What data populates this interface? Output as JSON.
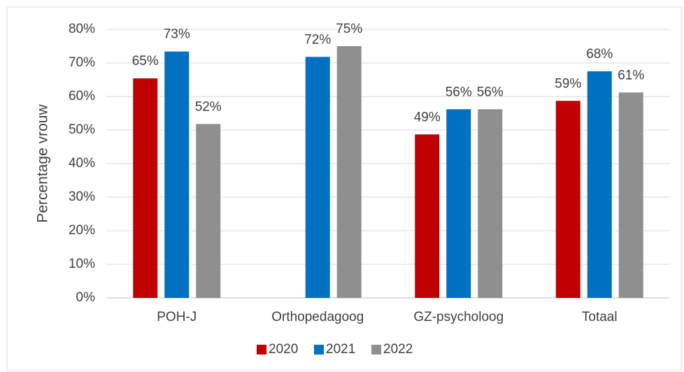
{
  "chart_data": {
    "type": "bar",
    "y_label": "Percentage vrouw",
    "categories": [
      "POH-J",
      "Orthopedagoog",
      "GZ-psycholoog",
      "Totaal"
    ],
    "series": [
      {
        "name": "2020",
        "color": "#c00000",
        "values": [
          65.4,
          null,
          48.7,
          58.7
        ],
        "value_labels": [
          "65%",
          null,
          "49%",
          "59%"
        ]
      },
      {
        "name": "2021",
        "color": "#0070c0",
        "values": [
          73.4,
          71.8,
          56.2,
          67.5
        ],
        "value_labels": [
          "73%",
          "72%",
          "56%",
          "68%"
        ]
      },
      {
        "name": "2022",
        "color": "#8f8f8f",
        "values": [
          51.8,
          75.0,
          56.2,
          61.2
        ],
        "value_labels": [
          "52%",
          "75%",
          "56%",
          "61%"
        ]
      }
    ],
    "ylim": [
      0,
      80
    ],
    "yticks": [
      {
        "value": 0,
        "label": "0%"
      },
      {
        "value": 10,
        "label": "10%"
      },
      {
        "value": 20,
        "label": "20%"
      },
      {
        "value": 30,
        "label": "30%"
      },
      {
        "value": 40,
        "label": "40%"
      },
      {
        "value": 50,
        "label": "50%"
      },
      {
        "value": 60,
        "label": "60%"
      },
      {
        "value": 70,
        "label": "70%"
      },
      {
        "value": 80,
        "label": "80%"
      }
    ],
    "grid": true,
    "legend": "bottom"
  }
}
